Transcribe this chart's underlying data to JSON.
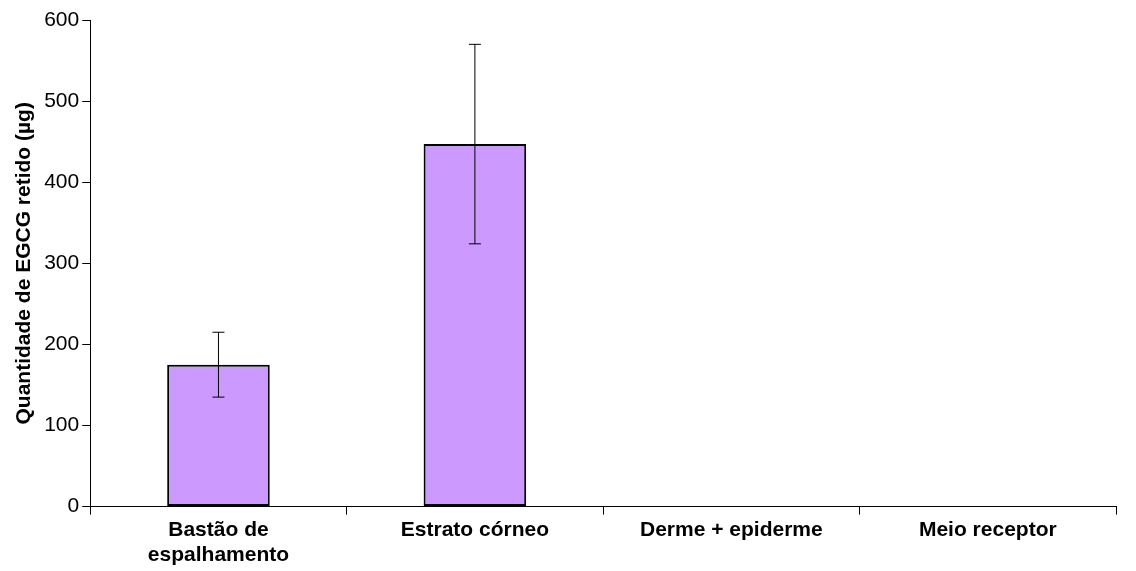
{
  "chart_data": {
    "type": "bar",
    "ylabel": "Quantidade de EGCG retido (µg)",
    "categories": [
      "Bastão de espalhamento",
      "Estrato córneo",
      "Derme + epiderme",
      "Meio receptor"
    ],
    "values": [
      175,
      447,
      null,
      null
    ],
    "errors": [
      40,
      123,
      null,
      null
    ],
    "color": "#cc99ff",
    "ylim": [
      0,
      600
    ],
    "yticks": [
      0,
      100,
      200,
      300,
      400,
      500,
      600
    ],
    "grid": false,
    "legend": false
  }
}
